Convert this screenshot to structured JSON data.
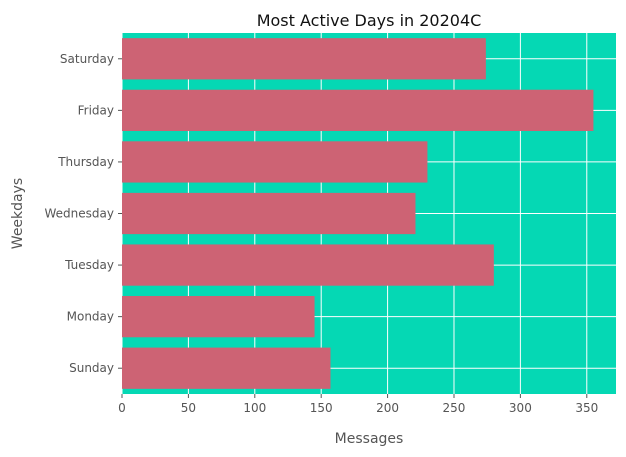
{
  "chart_data": {
    "type": "bar",
    "orientation": "horizontal",
    "title": "Most Active Days in 20204C",
    "xlabel": "Messages",
    "ylabel": "Weekdays",
    "categories": [
      "Sunday",
      "Monday",
      "Tuesday",
      "Wednesday",
      "Thursday",
      "Friday",
      "Saturday"
    ],
    "values": [
      157,
      145,
      280,
      221,
      230,
      355,
      274
    ],
    "xlim": [
      0,
      372
    ],
    "xticks": [
      0,
      50,
      100,
      150,
      200,
      250,
      300,
      350
    ],
    "grid": true,
    "colors": {
      "background": "#05D8B4",
      "bar": "#CD6374",
      "grid": "#FFFFFF",
      "axis_text": "#555555",
      "title_text": "#111111"
    }
  }
}
